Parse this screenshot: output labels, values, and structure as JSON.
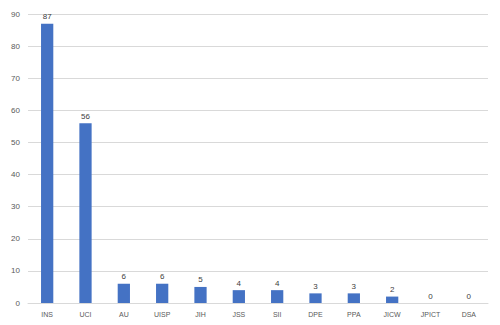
{
  "chart_data": {
    "type": "bar",
    "categories": [
      "INS",
      "UCI",
      "AU",
      "UISP",
      "JIH",
      "JSS",
      "SII",
      "DPE",
      "PPA",
      "JICW",
      "JPICT",
      "DSA"
    ],
    "values": [
      87,
      56,
      6,
      6,
      5,
      4,
      4,
      3,
      3,
      2,
      0,
      0
    ],
    "color": "#4472c4",
    "ylim": [
      0,
      90
    ],
    "yticks": [
      0,
      10,
      20,
      30,
      40,
      50,
      60,
      70,
      80,
      90
    ],
    "grid": true,
    "data_labels": true
  }
}
